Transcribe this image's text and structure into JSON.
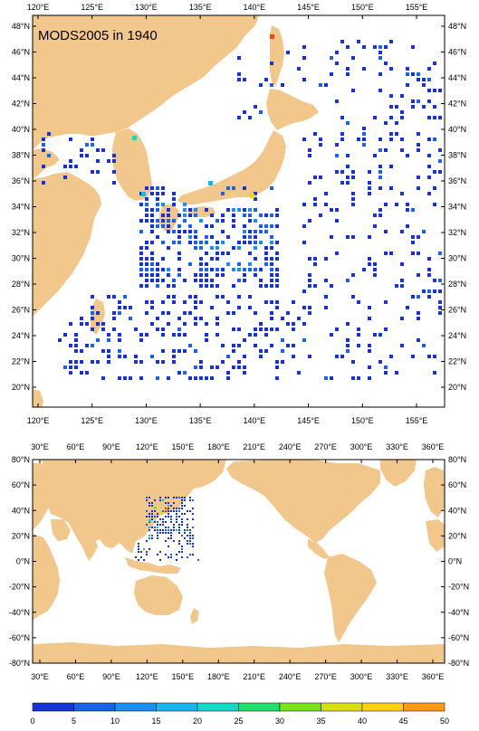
{
  "title": "MODS2005 in 1940",
  "colors": {
    "land": "#f2c78c",
    "ocean": "#ffffff",
    "frame": "#000000",
    "scale": [
      "#1733d6",
      "#1a62e8",
      "#1a8ff0",
      "#16b7ee",
      "#14d8c8",
      "#1fe06a",
      "#7ee21a",
      "#d8e014",
      "#ffd20f",
      "#ff9a12",
      "#ff4412"
    ]
  },
  "regional_map": {
    "x_ticks_top": [
      "120°E",
      "125°E",
      "130°E",
      "135°E",
      "140°E",
      "145°E",
      "150°E",
      "155°E"
    ],
    "x_ticks_bottom": [
      "120°E",
      "125°E",
      "130°E",
      "135°E",
      "140°E",
      "145°E",
      "150°E",
      "155°E"
    ],
    "y_ticks_left": [
      "48°N",
      "46°N",
      "44°N",
      "42°N",
      "40°N",
      "38°N",
      "36°N",
      "34°N",
      "32°N",
      "30°N",
      "28°N",
      "26°N",
      "24°N",
      "22°N",
      "20°N"
    ],
    "y_ticks_right": [
      "48°N",
      "46°N",
      "44°N",
      "42°N",
      "40°N",
      "38°N",
      "36°N",
      "34°N",
      "32°N",
      "30°N",
      "28°N",
      "26°N",
      "24°N",
      "22°N",
      "20°N"
    ]
  },
  "global_map": {
    "x_ticks_top": [
      "30°E",
      "60°E",
      "90°E",
      "120°E",
      "150°E",
      "180°E",
      "210°E",
      "240°E",
      "270°E",
      "300°E",
      "330°E",
      "360°E"
    ],
    "x_ticks_bottom": [
      "30°E",
      "60°E",
      "90°E",
      "120°E",
      "150°E",
      "180°E",
      "210°E",
      "240°E",
      "270°E",
      "300°E",
      "330°E",
      "360°E"
    ],
    "y_ticks_left": [
      "80°N",
      "60°N",
      "40°N",
      "20°N",
      "0°N",
      "-20°N",
      "-40°N",
      "-60°N",
      "-80°N"
    ],
    "y_ticks_right": [
      "80°N",
      "60°N",
      "40°N",
      "20°N",
      "0°N",
      "-20°N",
      "-40°N",
      "-60°N",
      "-80°N"
    ]
  },
  "colorbar": {
    "labels": [
      "0",
      "5",
      "10",
      "15",
      "20",
      "25",
      "30",
      "35",
      "40",
      "45",
      "50"
    ]
  }
}
